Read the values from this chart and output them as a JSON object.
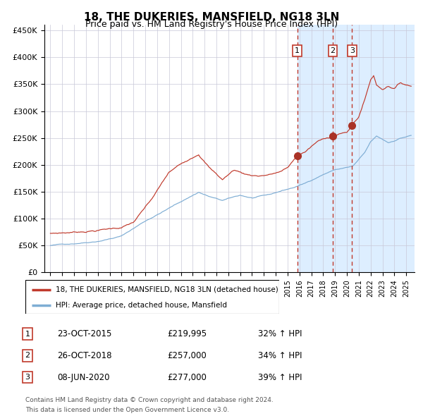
{
  "title": "18, THE DUKERIES, MANSFIELD, NG18 3LN",
  "subtitle": "Price paid vs. HM Land Registry's House Price Index (HPI)",
  "legend_line1": "18, THE DUKERIES, MANSFIELD, NG18 3LN (detached house)",
  "legend_line2": "HPI: Average price, detached house, Mansfield",
  "footnote1": "Contains HM Land Registry data © Crown copyright and database right 2024.",
  "footnote2": "This data is licensed under the Open Government Licence v3.0.",
  "transactions": [
    {
      "num": 1,
      "date": "23-OCT-2015",
      "price": "£219,995",
      "pct": "32% ↑ HPI",
      "year": 2015.81
    },
    {
      "num": 2,
      "date": "26-OCT-2018",
      "price": "£257,000",
      "pct": "34% ↑ HPI",
      "year": 2018.81
    },
    {
      "num": 3,
      "date": "08-JUN-2020",
      "price": "£277,000",
      "pct": "39% ↑ HPI",
      "year": 2020.44
    }
  ],
  "hpi_color": "#7eadd4",
  "property_color": "#c0392b",
  "marker_color": "#a93226",
  "vline_color": "#c0392b",
  "background_color": "#ddeeff",
  "grid_color": "#c8c8d8",
  "ylim": [
    0,
    460000
  ],
  "xlim_start": 1994.5,
  "xlim_end": 2025.7,
  "highlight_start": 2015.81,
  "title_fontsize": 11,
  "subtitle_fontsize": 9
}
